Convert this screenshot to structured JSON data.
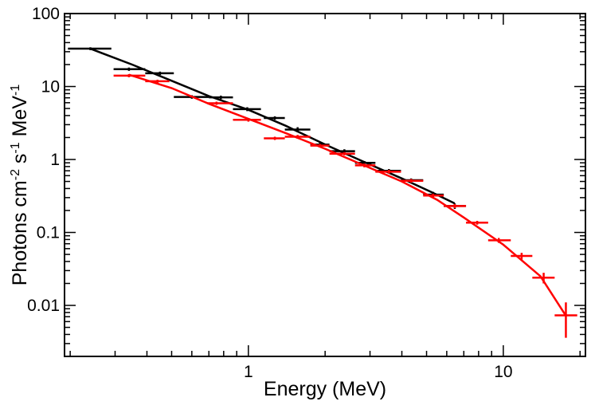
{
  "chart_data": {
    "type": "errorbar",
    "log_x": true,
    "log_y": true,
    "xlabel": "Energy (MeV)",
    "ylabel": [
      {
        "text": "Photons cm"
      },
      {
        "sup": "-2"
      },
      {
        "text": " s"
      },
      {
        "sup": "-1"
      },
      {
        "text": " MeV"
      },
      {
        "sup": "-1"
      }
    ],
    "xlim": [
      0.19,
      21
    ],
    "ylim": [
      0.002,
      100
    ],
    "xticks": [
      1,
      10
    ],
    "yticks": [
      0.01,
      0.1,
      1,
      10,
      100
    ],
    "series": [
      {
        "color": "#000000",
        "x": [
          0.24,
          0.34,
          0.45,
          0.6,
          0.78,
          0.99,
          1.27,
          1.56,
          1.91,
          2.38,
          2.85,
          3.56,
          4.35,
          5.3,
          6.45
        ],
        "x_low": [
          0.196,
          0.296,
          0.394,
          0.51,
          0.7,
          0.87,
          1.15,
          1.39,
          1.75,
          2.08,
          2.62,
          3.15,
          3.97,
          4.85,
          5.84
        ],
        "x_high": [
          0.29,
          0.394,
          0.51,
          0.7,
          0.87,
          1.12,
          1.39,
          1.75,
          2.08,
          2.62,
          3.15,
          3.97,
          4.85,
          5.84,
          7.14
        ],
        "values": [
          33,
          17.3,
          15.2,
          7.2,
          7.1,
          4.9,
          3.7,
          2.57,
          1.6,
          1.3,
          0.9,
          0.7,
          0.52,
          0.33,
          0.23
        ],
        "y_err": [
          1.5,
          0.9,
          0.8,
          0.4,
          0.4,
          0.3,
          0.2,
          0.2,
          0.1,
          0.08,
          0.05,
          0.04,
          0.03,
          0.03,
          0.02
        ],
        "model_x": [
          0.24,
          0.35,
          0.5,
          0.7,
          1,
          1.4,
          2,
          2.8,
          4,
          5.2,
          6.45
        ],
        "model_y": [
          33,
          20,
          12,
          7.4,
          4.8,
          2.9,
          1.6,
          0.95,
          0.55,
          0.36,
          0.25
        ]
      },
      {
        "color": "#ff0000",
        "x": [
          0.34,
          0.44,
          0.75,
          1.0,
          1.27,
          1.56,
          1.91,
          2.38,
          2.85,
          3.56,
          4.35,
          5.3,
          6.45,
          7.9,
          9.6,
          11.8,
          14.4,
          17.6
        ],
        "x_low": [
          0.296,
          0.394,
          0.69,
          0.87,
          1.15,
          1.39,
          1.75,
          2.08,
          2.62,
          3.15,
          3.97,
          4.85,
          5.84,
          7.14,
          8.72,
          10.7,
          13.0,
          15.9
        ],
        "x_high": [
          0.394,
          0.49,
          0.87,
          1.12,
          1.39,
          1.75,
          2.08,
          2.62,
          3.15,
          3.97,
          4.85,
          5.84,
          7.14,
          8.72,
          10.7,
          13.0,
          15.9,
          19.5
        ],
        "values": [
          14.1,
          11.8,
          5.9,
          3.5,
          1.95,
          2.05,
          1.55,
          1.2,
          0.83,
          0.68,
          0.51,
          0.32,
          0.23,
          0.136,
          0.078,
          0.0476,
          0.024,
          0.0073
        ],
        "y_err": [
          0.7,
          0.6,
          0.3,
          0.2,
          0.1,
          0.12,
          0.08,
          0.06,
          0.05,
          0.04,
          0.03,
          0.02,
          0.015,
          0.008,
          0.006,
          0.005,
          0.004,
          0.0037
        ],
        "model_x": [
          0.34,
          0.5,
          0.7,
          1,
          1.4,
          2,
          2.8,
          4,
          5.5,
          7,
          10,
          14,
          17.6
        ],
        "model_y": [
          14.5,
          9.5,
          5.8,
          3.6,
          2.3,
          1.4,
          0.85,
          0.5,
          0.28,
          0.16,
          0.068,
          0.025,
          0.0072
        ]
      }
    ]
  }
}
